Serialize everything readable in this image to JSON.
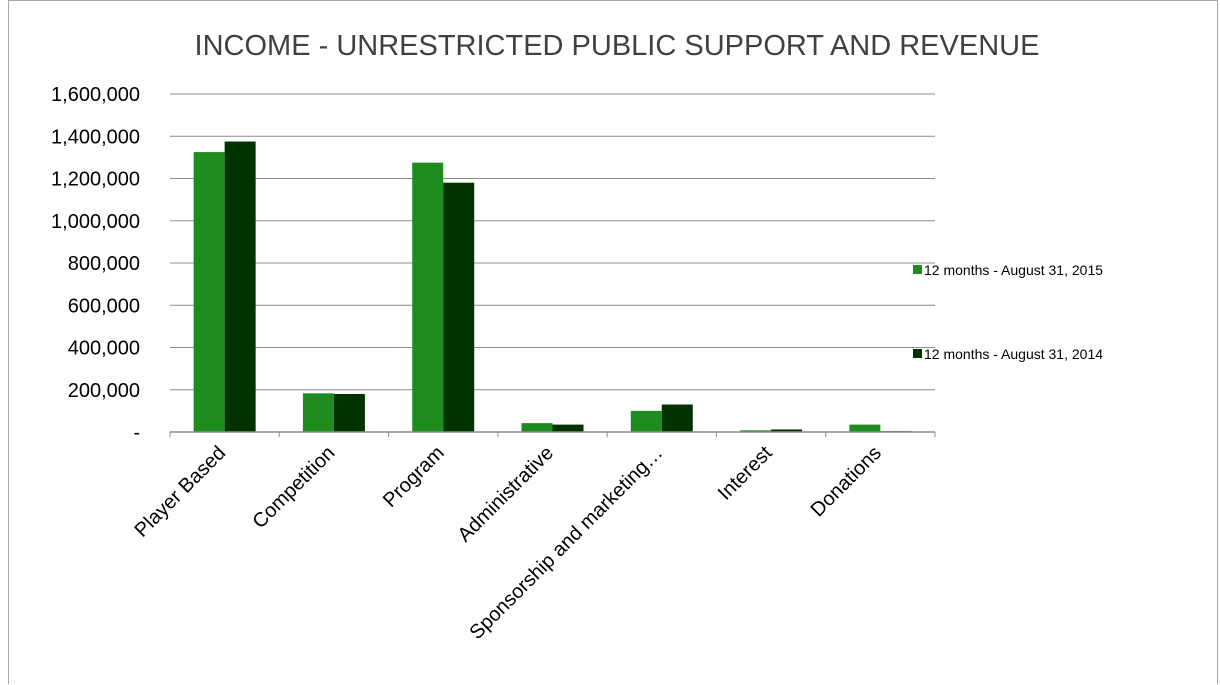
{
  "chart_data": {
    "type": "bar",
    "title": "INCOME - UNRESTRICTED PUBLIC SUPPORT AND REVENUE",
    "xlabel": "",
    "ylabel": "",
    "categories": [
      "Player Based",
      "Competition",
      "Program",
      "Administrative",
      "Sponsorship and marketing…",
      "Interest",
      "Donations"
    ],
    "series": [
      {
        "name": "12 months - August 31, 2015",
        "color": "#1e8c1e",
        "values": [
          1325000,
          183000,
          1275000,
          42000,
          100000,
          8000,
          35000
        ]
      },
      {
        "name": "12 months - August 31, 2014",
        "color": "#003300",
        "values": [
          1375000,
          180000,
          1180000,
          35000,
          130000,
          12000,
          4000
        ]
      }
    ],
    "ylim": [
      0,
      1600000
    ],
    "yticks": [
      0,
      200000,
      400000,
      600000,
      800000,
      1000000,
      1200000,
      1400000,
      1600000
    ],
    "ytick_labels": [
      "-",
      "200,000",
      "400,000",
      "600,000",
      "800,000",
      "1,000,000",
      "1,200,000",
      "1,400,000",
      "1,600,000"
    ],
    "grid": true,
    "legend_position": "right"
  }
}
